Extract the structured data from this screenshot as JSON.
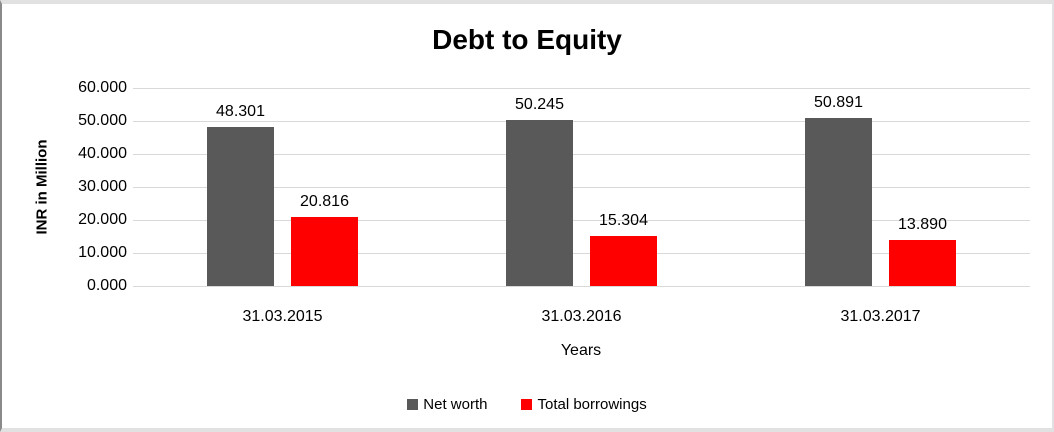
{
  "chart": {
    "title": "Debt to Equity",
    "y_axis_title": "INR in Million",
    "x_axis_title": "Years"
  },
  "colors": {
    "net_worth": "#595959",
    "total_borrowings": "#ff0000",
    "gridline": "#d9d9d9",
    "frame_border": "#e1e1e1",
    "frame_left_border": "#8a8a8a"
  },
  "chart_data": {
    "type": "bar",
    "title": "Debt to Equity",
    "xlabel": "Years",
    "ylabel": "INR in Million",
    "categories": [
      "31.03.2015",
      "31.03.2016",
      "31.03.2017"
    ],
    "series": [
      {
        "name": "Net worth",
        "color": "#595959",
        "values": [
          48.301,
          50.245,
          50.891
        ],
        "data_labels": [
          "48.301",
          "50.245",
          "50.891"
        ]
      },
      {
        "name": "Total borrowings",
        "color": "#ff0000",
        "values": [
          20.816,
          15.304,
          13.89
        ],
        "data_labels": [
          "20.816",
          "15.304",
          "13.890"
        ]
      }
    ],
    "ylim": [
      0,
      60
    ],
    "y_tick_labels": [
      "0.000",
      "10.000",
      "20.000",
      "30.000",
      "40.000",
      "50.000",
      "60.000"
    ],
    "grid": true,
    "legend_position": "bottom"
  }
}
